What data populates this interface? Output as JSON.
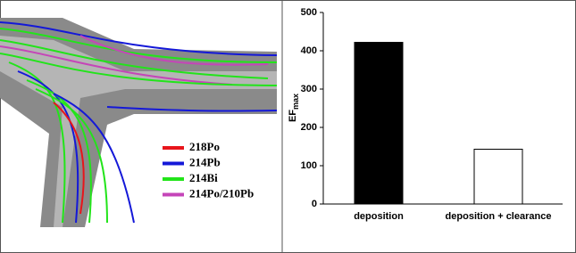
{
  "illustration": {
    "legend": [
      {
        "label": "218Po",
        "color": "#e8151b"
      },
      {
        "label": "214Pb",
        "color": "#1418d8"
      },
      {
        "label": "214Bi",
        "color": "#22e41a"
      },
      {
        "label": "214Po/210Pb",
        "color": "#c545b8"
      }
    ]
  },
  "chart_data": {
    "type": "bar",
    "y_label": "EF",
    "y_label_sub": "max",
    "categories": [
      "deposition",
      "deposition + clearance"
    ],
    "values": [
      422,
      143
    ],
    "colors": [
      "#000000",
      "#ffffff"
    ],
    "ylim": [
      0,
      500
    ],
    "yticks": [
      0,
      100,
      200,
      300,
      400,
      500
    ],
    "grid": false
  }
}
